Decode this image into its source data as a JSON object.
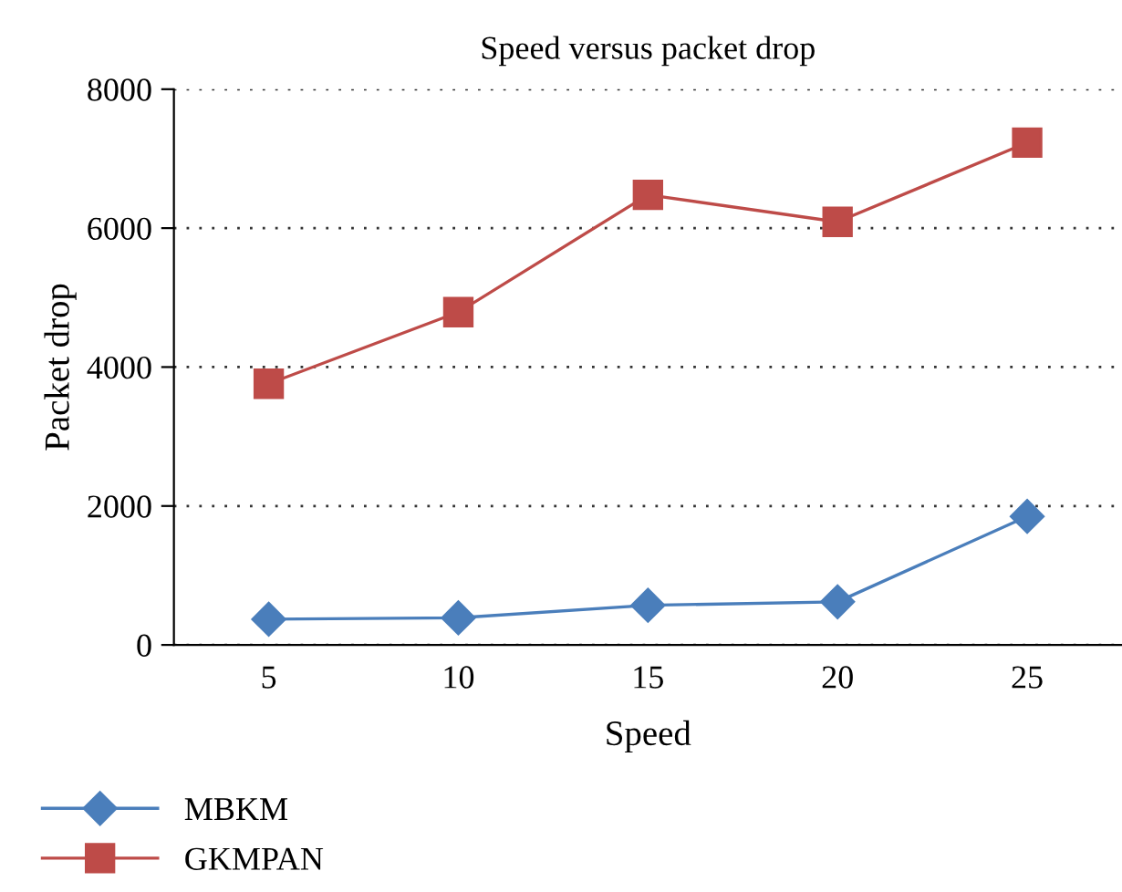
{
  "chart_data": {
    "type": "line",
    "title": "Speed versus packet drop",
    "xlabel": "Speed",
    "ylabel": "Packet drop",
    "categories": [
      "5",
      "10",
      "15",
      "20",
      "25"
    ],
    "series": [
      {
        "name": "MBKM",
        "color": "#4a7ebb",
        "marker": "diamond",
        "values": [
          370,
          390,
          570,
          620,
          1850
        ]
      },
      {
        "name": "GKMPAN",
        "color": "#be4b48",
        "marker": "square",
        "values": [
          3760,
          4790,
          6480,
          6090,
          7230
        ]
      }
    ],
    "ylim": [
      0,
      8000
    ],
    "yticks": [
      0,
      2000,
      4000,
      6000,
      8000
    ],
    "grid": "y",
    "legend": "bottom",
    "line_style": "solid"
  }
}
